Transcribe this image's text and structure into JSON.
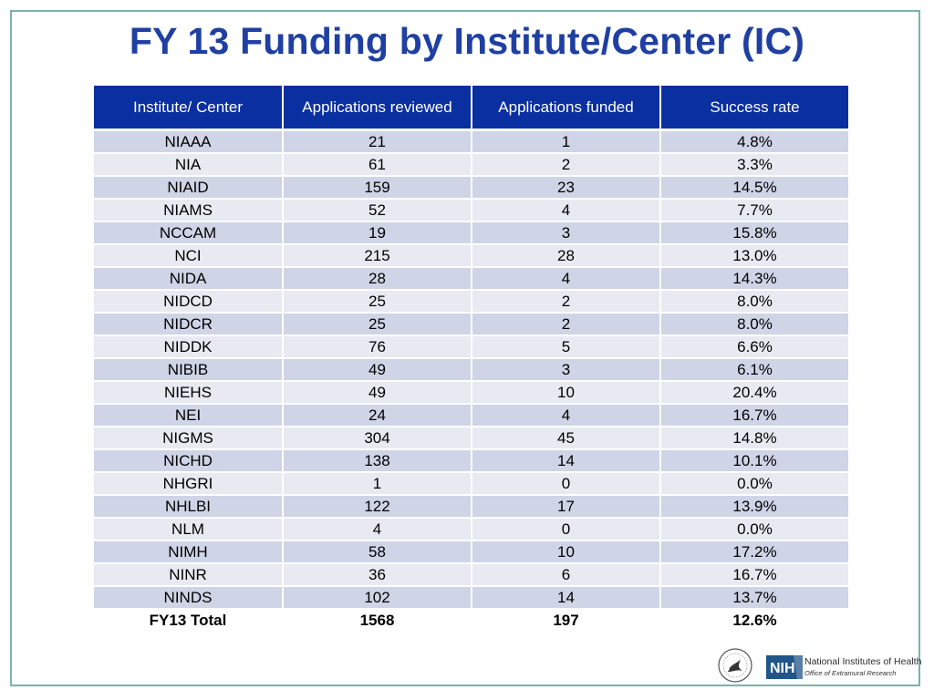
{
  "title": "FY 13 Funding by Institute/Center (IC)",
  "table": {
    "headers": [
      "Institute/ Center",
      "Applications reviewed",
      "Applications funded",
      "Success rate"
    ],
    "rows": [
      [
        "NIAAA",
        "21",
        "1",
        "4.8%"
      ],
      [
        "NIA",
        "61",
        "2",
        "3.3%"
      ],
      [
        "NIAID",
        "159",
        "23",
        "14.5%"
      ],
      [
        "NIAMS",
        "52",
        "4",
        "7.7%"
      ],
      [
        "NCCAM",
        "19",
        "3",
        "15.8%"
      ],
      [
        "NCI",
        "215",
        "28",
        "13.0%"
      ],
      [
        "NIDA",
        "28",
        "4",
        "14.3%"
      ],
      [
        "NIDCD",
        "25",
        "2",
        "8.0%"
      ],
      [
        "NIDCR",
        "25",
        "2",
        "8.0%"
      ],
      [
        "NIDDK",
        "76",
        "5",
        "6.6%"
      ],
      [
        "NIBIB",
        "49",
        "3",
        "6.1%"
      ],
      [
        "NIEHS",
        "49",
        "10",
        "20.4%"
      ],
      [
        "NEI",
        "24",
        "4",
        "16.7%"
      ],
      [
        "NIGMS",
        "304",
        "45",
        "14.8%"
      ],
      [
        "NICHD",
        "138",
        "14",
        "10.1%"
      ],
      [
        "NHGRI",
        "1",
        "0",
        "0.0%"
      ],
      [
        "NHLBI",
        "122",
        "17",
        "13.9%"
      ],
      [
        "NLM",
        "4",
        "0",
        "0.0%"
      ],
      [
        "NIMH",
        "58",
        "10",
        "17.2%"
      ],
      [
        "NINR",
        "36",
        "6",
        "16.7%"
      ],
      [
        "NINDS",
        "102",
        "14",
        "13.7%"
      ]
    ],
    "total": [
      "FY13 Total",
      "1568",
      "197",
      "12.6%"
    ]
  },
  "logos": {
    "nih_badge": "NIH",
    "nih_name": "National Institutes of Health",
    "nih_office": "Office of Extramural Research",
    "hhs_seal_icon": "hhs-seal-icon"
  },
  "colors": {
    "title": "#1f3fa2",
    "header_bg": "#0a2fa0",
    "row_odd": "#cfd4e6",
    "row_even": "#e8eaf2",
    "frame": "#7db2a6"
  }
}
